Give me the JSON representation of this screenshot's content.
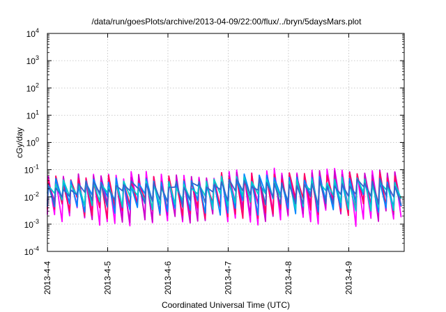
{
  "chart_data": {
    "type": "line",
    "title": "/data/run/goesPlots/archive/2013-04-09/22:00/flux/../bryn/5daysMars.plot",
    "xlabel": "Coordinated Universal Time (UTC)",
    "ylabel": "cGy/day",
    "y_scale": "log",
    "ylim_exponent": [
      -4,
      4
    ],
    "y_ticks": [
      {
        "base": "10",
        "exp": "4",
        "value_exp": 4
      },
      {
        "base": "10",
        "exp": "3",
        "value_exp": 3
      },
      {
        "base": "10",
        "exp": "2",
        "value_exp": 2
      },
      {
        "base": "10",
        "exp": "1",
        "value_exp": 1
      },
      {
        "base": "10",
        "exp": "0",
        "value_exp": 0
      },
      {
        "base": "10",
        "exp": "-1",
        "value_exp": -1
      },
      {
        "base": "10",
        "exp": "-2",
        "value_exp": -2
      },
      {
        "base": "10",
        "exp": "-3",
        "value_exp": -3
      },
      {
        "base": "10",
        "exp": "-4",
        "value_exp": -4
      }
    ],
    "x_range_days": [
      "2013-4-4",
      "2013-4-9 22:00"
    ],
    "x_ticks": [
      "2013-4-4",
      "2013-4-5",
      "2013-4-6",
      "2013-4-7",
      "2013-4-8",
      "2013-4-9"
    ],
    "grid": true,
    "series_count": 6,
    "series_colors": [
      "#ff00ff",
      "#cc00cc",
      "#ff0066",
      "#0088ff",
      "#00cccc",
      "#3366cc"
    ],
    "description_of_pattern": "",
    "sawtooth": {
      "cycles_per_day": 8,
      "peak_log10_range": [
        -1.4,
        -1.05
      ],
      "trough_log10_range": [
        -3.1,
        -2.3
      ]
    }
  }
}
